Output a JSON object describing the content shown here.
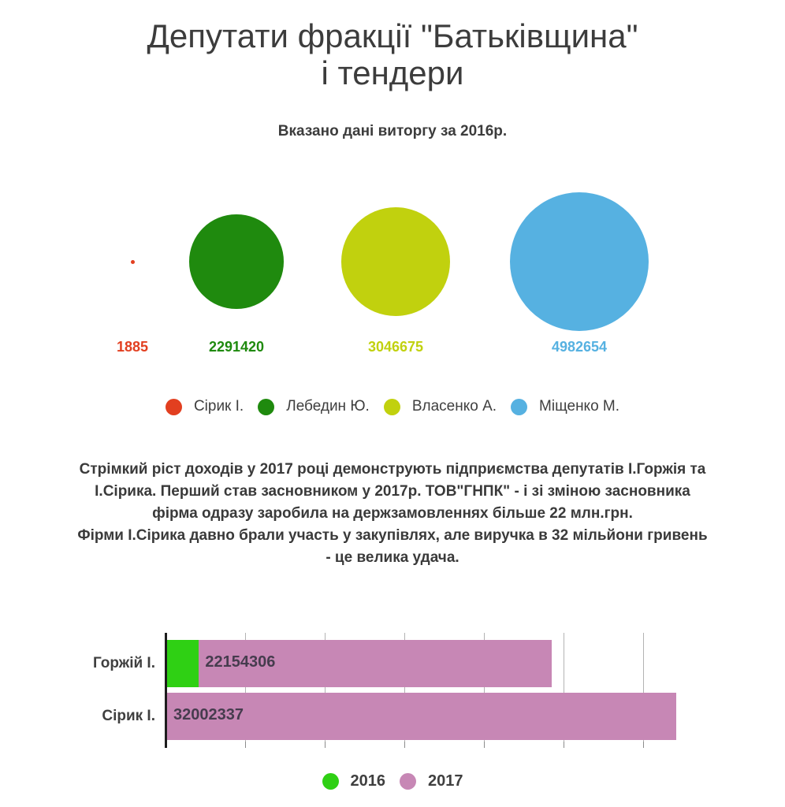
{
  "header": {
    "title_line1": "Депутати фракції \"Батьківщина\"",
    "title_line2": "і тендери",
    "subtitle": "Вказано дані виторгу за 2016р."
  },
  "chart_data": [
    {
      "type": "bubble",
      "title": "Вказано дані виторгу за 2016р.",
      "items": [
        {
          "label": "Сірик І.",
          "value": 1885,
          "color": "#e23f20"
        },
        {
          "label": "Лебедин Ю.",
          "value": 2291420,
          "color": "#1f8a0e"
        },
        {
          "label": "Власенко А.",
          "value": 3046675,
          "color": "#c1d10e"
        },
        {
          "label": "Міщенко М.",
          "value": 4982654,
          "color": "#56b1e1"
        }
      ],
      "value_labels": [
        "1885",
        "2291420",
        "3046675",
        "4982654"
      ],
      "legend_position": "bottom"
    },
    {
      "type": "bar",
      "orientation": "horizontal",
      "stacked": true,
      "categories": [
        "Горжій І.",
        "Сірик І."
      ],
      "series": [
        {
          "name": "2016",
          "color": "#2fd014",
          "values": [
            2000000,
            1885
          ]
        },
        {
          "name": "2017",
          "color": "#c787b5",
          "values": [
            22154306,
            32002337
          ]
        }
      ],
      "bar_value_labels": [
        "22154306",
        "32002337"
      ],
      "xlim": [
        0,
        32800000
      ],
      "x_gridline_interval": 5000000,
      "grid": true,
      "legend_position": "bottom"
    }
  ],
  "narrative": {
    "paragraph1": "Стрімкий ріст доходів у 2017 році демонструють підприємства депутатів І.Горжія та І.Сірика. Перший став засновником у 2017р. ТОВ\"ГНПК\" - і зі зміною засновника фірма одразу заробила на держзамовленнях більше 22 млн.грн.",
    "paragraph2": "Фірми І.Сірика давно брали участь у закупівлях, але виручка в 32 мільйони гривень - це велика удача."
  },
  "colors": {
    "text": "#3b3b3b",
    "axis": "#1d1d1d",
    "gridline": "#b3b3b3",
    "bar_label_text": "#463c4e"
  }
}
